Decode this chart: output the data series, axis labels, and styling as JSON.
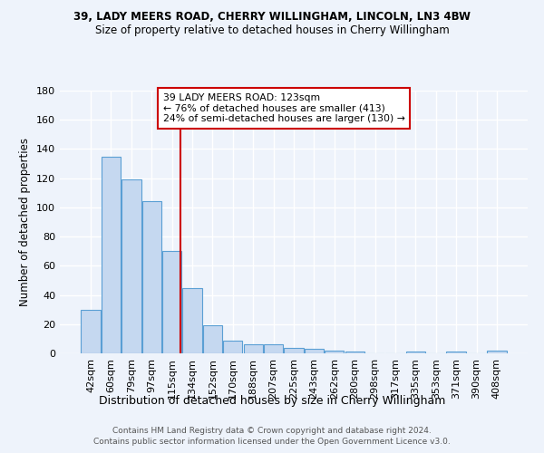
{
  "title1": "39, LADY MEERS ROAD, CHERRY WILLINGHAM, LINCOLN, LN3 4BW",
  "title2": "Size of property relative to detached houses in Cherry Willingham",
  "xlabel": "Distribution of detached houses by size in Cherry Willingham",
  "ylabel": "Number of detached properties",
  "footnote1": "Contains HM Land Registry data © Crown copyright and database right 2024.",
  "footnote2": "Contains public sector information licensed under the Open Government Licence v3.0.",
  "categories": [
    "42sqm",
    "60sqm",
    "79sqm",
    "97sqm",
    "115sqm",
    "134sqm",
    "152sqm",
    "170sqm",
    "188sqm",
    "207sqm",
    "225sqm",
    "243sqm",
    "262sqm",
    "280sqm",
    "298sqm",
    "317sqm",
    "335sqm",
    "353sqm",
    "371sqm",
    "390sqm",
    "408sqm"
  ],
  "values": [
    30,
    135,
    119,
    104,
    70,
    45,
    19,
    9,
    6,
    6,
    4,
    3,
    2,
    1,
    0,
    0,
    1,
    0,
    1,
    0,
    2
  ],
  "bar_color": "#c5d8f0",
  "bar_edge_color": "#5a9fd4",
  "bg_color": "#eef3fb",
  "grid_color": "#ffffff",
  "property_line_color": "#cc0000",
  "annotation_text": "39 LADY MEERS ROAD: 123sqm\n← 76% of detached houses are smaller (413)\n24% of semi-detached houses are larger (130) →",
  "annotation_box_color": "#ffffff",
  "annotation_box_edge_color": "#cc0000",
  "ylim": [
    0,
    180
  ],
  "yticks": [
    0,
    20,
    40,
    60,
    80,
    100,
    120,
    140,
    160,
    180
  ]
}
